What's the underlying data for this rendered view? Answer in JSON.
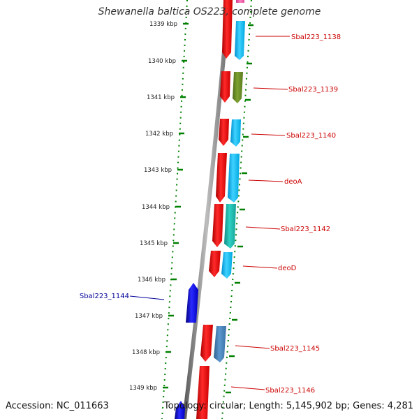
{
  "title": "Shewanella baltica OS223, complete genome",
  "accession": "Accession: NC_011663",
  "topology": "Topology: circular; Length: 5,145,902 bp; Genes: 4,281",
  "colors": {
    "forward_genes": "#ff0000",
    "reverse_genes": "#0000ff",
    "backbone": "#888888",
    "ticks": "#008000",
    "forward_label": "#cc0000",
    "reverse_label": "#000099",
    "cds_light_blue": "#00bfff",
    "cds_olive": "#6b8e23",
    "cds_teal": "#20b2aa",
    "cds_steel": "#4682b4",
    "cds_pink": "#ff69b4"
  },
  "ruler_labels": [
    "1339 kbp",
    "1340 kbp",
    "1341 kbp",
    "1342 kbp",
    "1343 kbp",
    "1344 kbp",
    "1345 kbp",
    "1346 kbp",
    "1347 kbp",
    "1348 kbp",
    "1349 kbp"
  ],
  "forward_gene_labels": [
    "Sbal223_1138",
    "Sbal223_1139",
    "Sbal223_1140",
    "deoA",
    "Sbal223_1142",
    "deoD",
    "Sbal223_1145",
    "Sbal223_1146"
  ],
  "reverse_gene_labels": [
    "Sbal223_1144"
  ]
}
